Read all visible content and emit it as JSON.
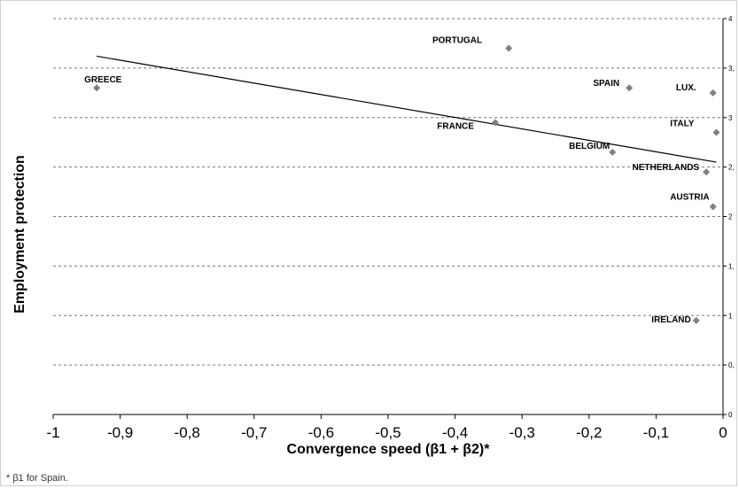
{
  "chart_data": {
    "type": "scatter",
    "xlabel": "Convergence speed (β1 + β2)*",
    "ylabel": "Employment protection",
    "xlim": [
      -1,
      0
    ],
    "ylim": [
      0,
      4
    ],
    "grid": "horizontal dashed",
    "x_ticks": [
      "-1",
      "-0,9",
      "-0,8",
      "-0,7",
      "-0,6",
      "-0,5",
      "-0,4",
      "-0,3",
      "-0,2",
      "-0,1",
      "0"
    ],
    "y_ticks": [
      "0",
      "0,",
      "1",
      "1,",
      "2",
      "2,",
      "3",
      "3,",
      "4"
    ],
    "points": [
      {
        "label": "PORTUGAL",
        "x": -0.32,
        "y": 3.7
      },
      {
        "label": "GREECE",
        "x": -0.935,
        "y": 3.3
      },
      {
        "label": "SPAIN",
        "x": -0.14,
        "y": 3.3
      },
      {
        "label": "LUX.",
        "x": -0.015,
        "y": 3.25
      },
      {
        "label": "FRANCE",
        "x": -0.34,
        "y": 2.95
      },
      {
        "label": "ITALY",
        "x": -0.01,
        "y": 2.85
      },
      {
        "label": "BELGIUM",
        "x": -0.165,
        "y": 2.65
      },
      {
        "label": "NETHERLANDS",
        "x": -0.025,
        "y": 2.45
      },
      {
        "label": "AUSTRIA",
        "x": -0.015,
        "y": 2.1
      },
      {
        "label": "IRELAND",
        "x": -0.04,
        "y": 0.95
      }
    ],
    "trendline": {
      "x": [
        -0.935,
        -0.01
      ],
      "y": [
        3.62,
        2.55
      ]
    },
    "marker_color": "#7f7f7f",
    "line_color": "#000000"
  },
  "footnote": "* β1 for Spain."
}
